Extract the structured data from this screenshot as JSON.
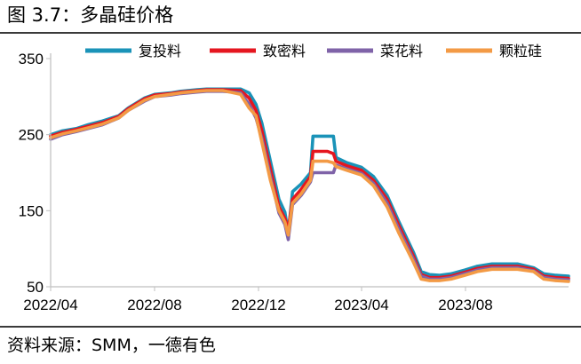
{
  "figure_title": "图 3.7：多晶硅价格",
  "source_note": "资料来源：SMM，一德有色",
  "colors": {
    "series_0": "#1a93b8",
    "series_1": "#e5161f",
    "series_2": "#7f63a8",
    "series_3": "#f39a45",
    "axis": "#bfbfbf",
    "rule": "#3a3a3a"
  },
  "chart_data": {
    "type": "line",
    "title": "",
    "xlabel": "",
    "ylabel": "",
    "ylim": [
      50,
      350
    ],
    "yticks": [
      50,
      150,
      250,
      350
    ],
    "xlim": [
      "2022-04-01",
      "2023-11-30"
    ],
    "xticks": [
      "2022/04",
      "2022/08",
      "2022/12",
      "2023/04",
      "2023/08"
    ],
    "xtick_dates": [
      "2022-04-01",
      "2022-08-01",
      "2022-12-01",
      "2023-04-01",
      "2023-08-01"
    ],
    "grid": false,
    "legend_position": "top",
    "series": [
      {
        "name": "复投料",
        "points": [
          [
            "2022-04-01",
            250
          ],
          [
            "2022-04-15",
            255
          ],
          [
            "2022-05-01",
            258
          ],
          [
            "2022-05-15",
            263
          ],
          [
            "2022-06-01",
            268
          ],
          [
            "2022-06-20",
            275
          ],
          [
            "2022-07-01",
            285
          ],
          [
            "2022-07-20",
            298
          ],
          [
            "2022-08-01",
            303
          ],
          [
            "2022-08-20",
            305
          ],
          [
            "2022-09-01",
            307
          ],
          [
            "2022-09-20",
            309
          ],
          [
            "2022-10-01",
            310
          ],
          [
            "2022-10-20",
            310
          ],
          [
            "2022-11-10",
            310
          ],
          [
            "2022-11-20",
            305
          ],
          [
            "2022-11-28",
            290
          ],
          [
            "2022-12-05",
            265
          ],
          [
            "2022-12-15",
            215
          ],
          [
            "2022-12-25",
            165
          ],
          [
            "2023-01-01",
            148
          ],
          [
            "2023-01-05",
            120
          ],
          [
            "2023-01-10",
            175
          ],
          [
            "2023-01-20",
            185
          ],
          [
            "2023-01-31",
            200
          ],
          [
            "2023-02-03",
            248
          ],
          [
            "2023-02-20",
            248
          ],
          [
            "2023-02-27",
            248
          ],
          [
            "2023-03-02",
            220
          ],
          [
            "2023-03-15",
            213
          ],
          [
            "2023-04-01",
            207
          ],
          [
            "2023-04-15",
            195
          ],
          [
            "2023-05-01",
            170
          ],
          [
            "2023-05-15",
            135
          ],
          [
            "2023-06-01",
            95
          ],
          [
            "2023-06-10",
            70
          ],
          [
            "2023-06-20",
            66
          ],
          [
            "2023-07-01",
            65
          ],
          [
            "2023-07-15",
            67
          ],
          [
            "2023-07-31",
            72
          ],
          [
            "2023-08-15",
            77
          ],
          [
            "2023-09-01",
            80
          ],
          [
            "2023-09-15",
            80
          ],
          [
            "2023-10-01",
            80
          ],
          [
            "2023-10-20",
            75
          ],
          [
            "2023-11-01",
            67
          ],
          [
            "2023-11-15",
            65
          ],
          [
            "2023-11-30",
            64
          ]
        ]
      },
      {
        "name": "致密料",
        "points": [
          [
            "2022-04-01",
            248
          ],
          [
            "2022-04-15",
            253
          ],
          [
            "2022-05-01",
            257
          ],
          [
            "2022-05-15",
            261
          ],
          [
            "2022-06-01",
            266
          ],
          [
            "2022-06-20",
            274
          ],
          [
            "2022-07-01",
            284
          ],
          [
            "2022-07-20",
            297
          ],
          [
            "2022-08-01",
            302
          ],
          [
            "2022-08-20",
            304
          ],
          [
            "2022-09-01",
            306
          ],
          [
            "2022-09-20",
            308
          ],
          [
            "2022-10-01",
            309
          ],
          [
            "2022-10-20",
            309
          ],
          [
            "2022-11-10",
            308
          ],
          [
            "2022-11-20",
            298
          ],
          [
            "2022-11-28",
            282
          ],
          [
            "2022-12-05",
            255
          ],
          [
            "2022-12-15",
            205
          ],
          [
            "2022-12-25",
            155
          ],
          [
            "2023-01-01",
            140
          ],
          [
            "2023-01-05",
            125
          ],
          [
            "2023-01-10",
            165
          ],
          [
            "2023-01-20",
            178
          ],
          [
            "2023-01-31",
            195
          ],
          [
            "2023-02-03",
            228
          ],
          [
            "2023-02-20",
            228
          ],
          [
            "2023-02-27",
            225
          ],
          [
            "2023-03-02",
            215
          ],
          [
            "2023-03-15",
            209
          ],
          [
            "2023-04-01",
            203
          ],
          [
            "2023-04-15",
            190
          ],
          [
            "2023-05-01",
            165
          ],
          [
            "2023-05-15",
            130
          ],
          [
            "2023-06-01",
            90
          ],
          [
            "2023-06-10",
            66
          ],
          [
            "2023-06-20",
            62
          ],
          [
            "2023-07-01",
            62
          ],
          [
            "2023-07-15",
            64
          ],
          [
            "2023-07-31",
            69
          ],
          [
            "2023-08-15",
            74
          ],
          [
            "2023-09-01",
            77
          ],
          [
            "2023-09-15",
            77
          ],
          [
            "2023-10-01",
            77
          ],
          [
            "2023-10-20",
            73
          ],
          [
            "2023-11-01",
            64
          ],
          [
            "2023-11-15",
            62
          ],
          [
            "2023-11-30",
            61
          ]
        ]
      },
      {
        "name": "菜花料",
        "points": [
          [
            "2022-04-01",
            244
          ],
          [
            "2022-04-15",
            250
          ],
          [
            "2022-05-01",
            254
          ],
          [
            "2022-05-15",
            258
          ],
          [
            "2022-06-01",
            263
          ],
          [
            "2022-06-20",
            272
          ],
          [
            "2022-07-01",
            282
          ],
          [
            "2022-07-20",
            294
          ],
          [
            "2022-08-01",
            300
          ],
          [
            "2022-08-20",
            302
          ],
          [
            "2022-09-01",
            304
          ],
          [
            "2022-09-20",
            306
          ],
          [
            "2022-10-01",
            307
          ],
          [
            "2022-10-20",
            307
          ],
          [
            "2022-11-10",
            305
          ],
          [
            "2022-11-20",
            290
          ],
          [
            "2022-11-28",
            272
          ],
          [
            "2022-12-05",
            245
          ],
          [
            "2022-12-15",
            195
          ],
          [
            "2022-12-25",
            147
          ],
          [
            "2023-01-01",
            132
          ],
          [
            "2023-01-05",
            112
          ],
          [
            "2023-01-10",
            158
          ],
          [
            "2023-01-20",
            170
          ],
          [
            "2023-01-31",
            188
          ],
          [
            "2023-02-03",
            200
          ],
          [
            "2023-02-20",
            200
          ],
          [
            "2023-02-27",
            200
          ],
          [
            "2023-03-02",
            210
          ],
          [
            "2023-03-15",
            205
          ],
          [
            "2023-04-01",
            199
          ],
          [
            "2023-04-15",
            186
          ],
          [
            "2023-05-01",
            160
          ],
          [
            "2023-05-15",
            125
          ],
          [
            "2023-06-01",
            86
          ],
          [
            "2023-06-10",
            64
          ],
          [
            "2023-06-20",
            60
          ],
          [
            "2023-07-01",
            60
          ],
          [
            "2023-07-15",
            62
          ],
          [
            "2023-07-31",
            67
          ],
          [
            "2023-08-15",
            72
          ],
          [
            "2023-09-01",
            75
          ],
          [
            "2023-09-15",
            75
          ],
          [
            "2023-10-01",
            75
          ],
          [
            "2023-10-20",
            71
          ],
          [
            "2023-11-01",
            62
          ],
          [
            "2023-11-15",
            60
          ],
          [
            "2023-11-30",
            59
          ]
        ]
      },
      {
        "name": "颗粒硅",
        "points": [
          [
            "2022-04-01",
            246
          ],
          [
            "2022-04-15",
            251
          ],
          [
            "2022-05-01",
            255
          ],
          [
            "2022-05-15",
            259
          ],
          [
            "2022-06-01",
            264
          ],
          [
            "2022-06-20",
            272
          ],
          [
            "2022-07-01",
            282
          ],
          [
            "2022-07-20",
            295
          ],
          [
            "2022-08-01",
            300
          ],
          [
            "2022-08-20",
            303
          ],
          [
            "2022-09-01",
            305
          ],
          [
            "2022-09-20",
            307
          ],
          [
            "2022-10-01",
            308
          ],
          [
            "2022-10-20",
            308
          ],
          [
            "2022-11-10",
            303
          ],
          [
            "2022-11-20",
            285
          ],
          [
            "2022-11-28",
            275
          ],
          [
            "2022-12-05",
            240
          ],
          [
            "2022-12-15",
            190
          ],
          [
            "2022-12-25",
            150
          ],
          [
            "2023-01-01",
            135
          ],
          [
            "2023-01-05",
            118
          ],
          [
            "2023-01-10",
            160
          ],
          [
            "2023-01-20",
            172
          ],
          [
            "2023-01-31",
            190
          ],
          [
            "2023-02-03",
            215
          ],
          [
            "2023-02-20",
            215
          ],
          [
            "2023-02-27",
            213
          ],
          [
            "2023-03-02",
            208
          ],
          [
            "2023-03-15",
            203
          ],
          [
            "2023-04-01",
            197
          ],
          [
            "2023-04-15",
            183
          ],
          [
            "2023-05-01",
            155
          ],
          [
            "2023-05-15",
            120
          ],
          [
            "2023-06-01",
            82
          ],
          [
            "2023-06-10",
            60
          ],
          [
            "2023-06-20",
            58
          ],
          [
            "2023-07-01",
            58
          ],
          [
            "2023-07-15",
            60
          ],
          [
            "2023-07-31",
            65
          ],
          [
            "2023-08-15",
            70
          ],
          [
            "2023-09-01",
            73
          ],
          [
            "2023-09-15",
            73
          ],
          [
            "2023-10-01",
            73
          ],
          [
            "2023-10-20",
            70
          ],
          [
            "2023-11-01",
            60
          ],
          [
            "2023-11-15",
            58
          ],
          [
            "2023-11-30",
            57
          ]
        ]
      }
    ]
  }
}
